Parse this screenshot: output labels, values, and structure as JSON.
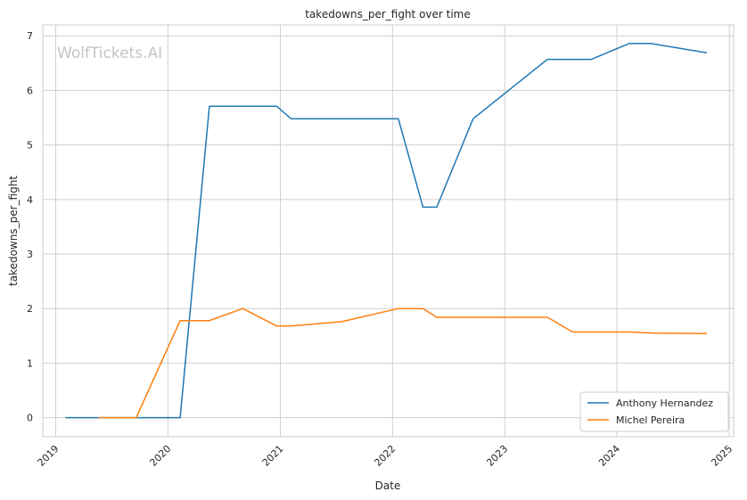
{
  "watermark": "WolfTickets.AI",
  "chart_data": {
    "type": "line",
    "title": "takedowns_per_fight over time",
    "xlabel": "Date",
    "ylabel": "takedowns_per_fight",
    "xlim": [
      "2018-11-20",
      "2025-01-15"
    ],
    "ylim": [
      -0.35,
      7.2
    ],
    "x_ticks": [
      "2019",
      "2020",
      "2021",
      "2022",
      "2023",
      "2024",
      "2025"
    ],
    "y_ticks": [
      "0",
      "1",
      "2",
      "3",
      "4",
      "5",
      "6",
      "7"
    ],
    "grid": true,
    "legend_position": "lower-right",
    "series": [
      {
        "name": "Anthony Hernandez",
        "color": "#1f77b4",
        "points": [
          [
            "2019-02-01",
            0
          ],
          [
            "2020-02-10",
            0
          ],
          [
            "2020-05-15",
            5.71
          ],
          [
            "2020-12-20",
            5.71
          ],
          [
            "2021-02-05",
            5.48
          ],
          [
            "2022-01-20",
            5.48
          ],
          [
            "2022-04-10",
            3.86
          ],
          [
            "2022-05-25",
            3.86
          ],
          [
            "2022-09-20",
            5.48
          ],
          [
            "2023-05-20",
            6.57
          ],
          [
            "2023-10-10",
            6.57
          ],
          [
            "2024-02-10",
            6.86
          ],
          [
            "2024-04-20",
            6.86
          ],
          [
            "2024-10-20",
            6.69
          ]
        ]
      },
      {
        "name": "Michel Pereira",
        "color": "#ff7f0e",
        "points": [
          [
            "2019-05-20",
            0
          ],
          [
            "2019-09-20",
            0
          ],
          [
            "2020-02-10",
            1.78
          ],
          [
            "2020-05-15",
            1.78
          ],
          [
            "2020-09-01",
            2.0
          ],
          [
            "2020-12-20",
            1.68
          ],
          [
            "2021-02-05",
            1.68
          ],
          [
            "2021-07-20",
            1.76
          ],
          [
            "2022-01-20",
            2.0
          ],
          [
            "2022-04-10",
            2.0
          ],
          [
            "2022-05-25",
            1.84
          ],
          [
            "2023-05-20",
            1.84
          ],
          [
            "2023-08-10",
            1.57
          ],
          [
            "2024-02-10",
            1.57
          ],
          [
            "2024-05-05",
            1.55
          ],
          [
            "2024-10-20",
            1.54
          ]
        ]
      }
    ]
  }
}
